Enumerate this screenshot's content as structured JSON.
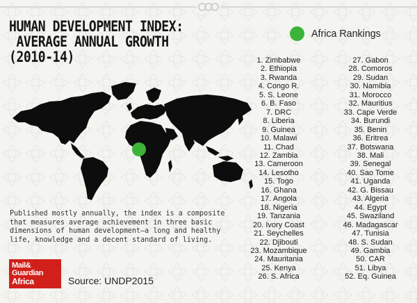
{
  "header": {
    "title_lines": [
      "HUMAN DEVELOPMENT INDEX:",
      " AVERAGE ANNUAL GROWTH",
      "(2010-14)"
    ]
  },
  "legend": {
    "label": "Africa Rankings",
    "color": "#3db33a"
  },
  "rankings": {
    "column_1": [
      "1. Zimbabwe",
      "2. Ethiopia",
      "3. Rwanda",
      "4. Congo R.",
      "5. S. Leone",
      "6. B. Faso",
      "7. DRC",
      "8. Liberia",
      "9. Guinea",
      "10. Malawi",
      "11. Chad",
      "12. Zambia",
      "13. Cameroon",
      "14. Lesotho",
      "15. Togo",
      "16. Ghana",
      "17. Angola",
      "18. Nigeria",
      "19. Tanzania",
      "20. Ivory Coast",
      "21. Seychelles",
      "22. Djibouti",
      "23. Mozambique",
      "24. Mauritania",
      "25. Kenya",
      "26. S. Africa"
    ],
    "column_2": [
      "27. Gabon",
      "28. Comoros",
      "29. Sudan",
      "30. Namibia",
      "31. Morocco",
      "32. Mauritius",
      "33. Cape Verde",
      "34. Burundi",
      "35. Benin",
      "36. Eritrea",
      "37. Botswana",
      "38. Mali",
      "39. Senegal",
      "40. Sao Tome",
      "41. Uganda",
      "42. G. Bissau",
      "43. Algeria",
      "44. Egypt",
      "45. Swaziland",
      "46. Madagascar",
      "47. Tunisia",
      "48. S. Sudan",
      "49. Gambia",
      "50. CAR",
      "51. Libya",
      "52. Eq. Guinea"
    ]
  },
  "description": "Published mostly annually, the index is a composite that measures average achievement in three basic dimensions of human development—a long and healthy life, knowledge and a decent standard of living.",
  "logo": {
    "lines": [
      "Mail&",
      "Guardian",
      "Africa"
    ],
    "color": "#d1201a"
  },
  "source": "Source: UNDP2015",
  "colors": {
    "map": "#0d0d0d",
    "background": "#f4f4f1",
    "accent": "#3db33a"
  },
  "icons": {
    "top": "rings-icon",
    "map": "world-map-icon"
  }
}
